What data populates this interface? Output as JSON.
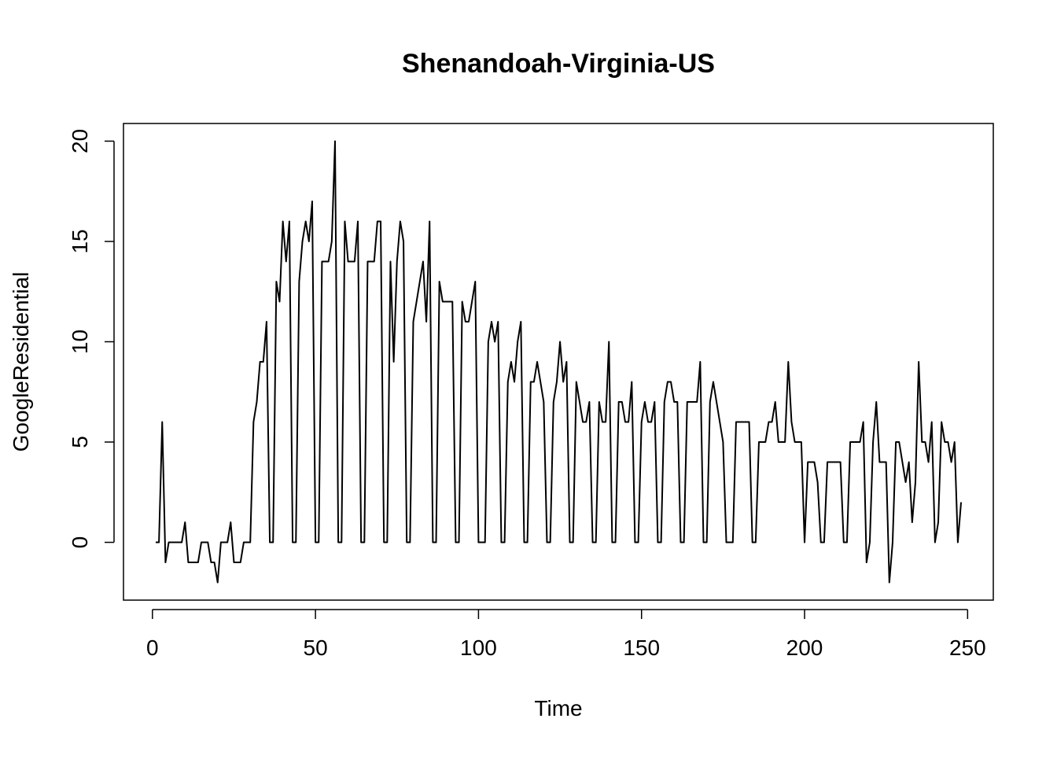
{
  "chart_data": {
    "type": "line",
    "title": "Shenandoah-Virginia-US",
    "x_label": "Time",
    "y_label": "GoogleResidential",
    "x": [
      1,
      2,
      3,
      4,
      5,
      6,
      7,
      8,
      9,
      10,
      11,
      12,
      13,
      14,
      15,
      16,
      17,
      18,
      19,
      20,
      21,
      22,
      23,
      24,
      25,
      26,
      27,
      28,
      29,
      30,
      31,
      32,
      33,
      34,
      35,
      36,
      37,
      38,
      39,
      40,
      41,
      42,
      43,
      44,
      45,
      46,
      47,
      48,
      49,
      50,
      51,
      52,
      53,
      54,
      55,
      56,
      57,
      58,
      59,
      60,
      61,
      62,
      63,
      64,
      65,
      66,
      67,
      68,
      69,
      70,
      71,
      72,
      73,
      74,
      75,
      76,
      77,
      78,
      79,
      80,
      81,
      82,
      83,
      84,
      85,
      86,
      87,
      88,
      89,
      90,
      91,
      92,
      93,
      94,
      95,
      96,
      97,
      98,
      99,
      100,
      101,
      102,
      103,
      104,
      105,
      106,
      107,
      108,
      109,
      110,
      111,
      112,
      113,
      114,
      115,
      116,
      117,
      118,
      119,
      120,
      121,
      122,
      123,
      124,
      125,
      126,
      127,
      128,
      129,
      130,
      131,
      132,
      133,
      134,
      135,
      136,
      137,
      138,
      139,
      140,
      141,
      142,
      143,
      144,
      145,
      146,
      147,
      148,
      149,
      150,
      151,
      152,
      153,
      154,
      155,
      156,
      157,
      158,
      159,
      160,
      161,
      162,
      163,
      164,
      165,
      166,
      167,
      168,
      169,
      170,
      171,
      172,
      173,
      174,
      175,
      176,
      177,
      178,
      179,
      180,
      181,
      182,
      183,
      184,
      185,
      186,
      187,
      188,
      189,
      190,
      191,
      192,
      193,
      194,
      195,
      196,
      197,
      198,
      199,
      200,
      201,
      202,
      203,
      204,
      205,
      206,
      207,
      208,
      209,
      210,
      211,
      212,
      213,
      214,
      215,
      216,
      217,
      218,
      219,
      220,
      221,
      222,
      223,
      224,
      225,
      226,
      227,
      228,
      229,
      230,
      231,
      232,
      233,
      234,
      235,
      236,
      237,
      238,
      239,
      240,
      241,
      242,
      243,
      244,
      245,
      246,
      247,
      248
    ],
    "values": [
      0,
      0,
      6,
      -1,
      0,
      0,
      0,
      0,
      0,
      1,
      -1,
      -1,
      -1,
      -1,
      0,
      0,
      0,
      -1,
      -1,
      -2,
      0,
      0,
      0,
      1,
      -1,
      -1,
      -1,
      0,
      0,
      0,
      6,
      7,
      9,
      9,
      11,
      0,
      0,
      13,
      12,
      16,
      14,
      16,
      0,
      0,
      13,
      15,
      16,
      15,
      17,
      0,
      0,
      14,
      14,
      14,
      15,
      20,
      0,
      0,
      16,
      14,
      14,
      14,
      16,
      0,
      0,
      14,
      14,
      14,
      16,
      16,
      0,
      0,
      14,
      9,
      14,
      16,
      15,
      0,
      0,
      11,
      12,
      13,
      14,
      11,
      16,
      0,
      0,
      13,
      12,
      12,
      12,
      12,
      0,
      0,
      12,
      11,
      11,
      12,
      13,
      0,
      0,
      0,
      10,
      11,
      10,
      11,
      0,
      0,
      8,
      9,
      8,
      10,
      11,
      0,
      0,
      8,
      8,
      9,
      8,
      7,
      0,
      0,
      7,
      8,
      10,
      8,
      9,
      0,
      0,
      8,
      7,
      6,
      6,
      7,
      0,
      0,
      7,
      6,
      6,
      10,
      0,
      0,
      7,
      7,
      6,
      6,
      8,
      0,
      0,
      6,
      7,
      6,
      6,
      7,
      0,
      0,
      7,
      8,
      8,
      7,
      7,
      0,
      0,
      7,
      7,
      7,
      7,
      9,
      0,
      0,
      7,
      8,
      7,
      6,
      5,
      0,
      0,
      0,
      6,
      6,
      6,
      6,
      6,
      0,
      0,
      5,
      5,
      5,
      6,
      6,
      7,
      5,
      5,
      5,
      9,
      6,
      5,
      5,
      5,
      0,
      4,
      4,
      4,
      3,
      0,
      0,
      4,
      4,
      4,
      4,
      4,
      0,
      0,
      5,
      5,
      5,
      5,
      6,
      -1,
      0,
      5,
      7,
      4,
      4,
      4,
      -2,
      0,
      5,
      5,
      4,
      3,
      4,
      1,
      3,
      9,
      5,
      5,
      4,
      6,
      0,
      1,
      6,
      5,
      5,
      4,
      5,
      0,
      2
    ],
    "color": "#000000",
    "xlim": [
      -8.88,
      257.88
    ],
    "ylim": [
      -2.88,
      20.88
    ],
    "xticks": [
      0,
      50,
      100,
      150,
      200,
      250
    ],
    "yticks": [
      0,
      5,
      10,
      15,
      20
    ]
  }
}
